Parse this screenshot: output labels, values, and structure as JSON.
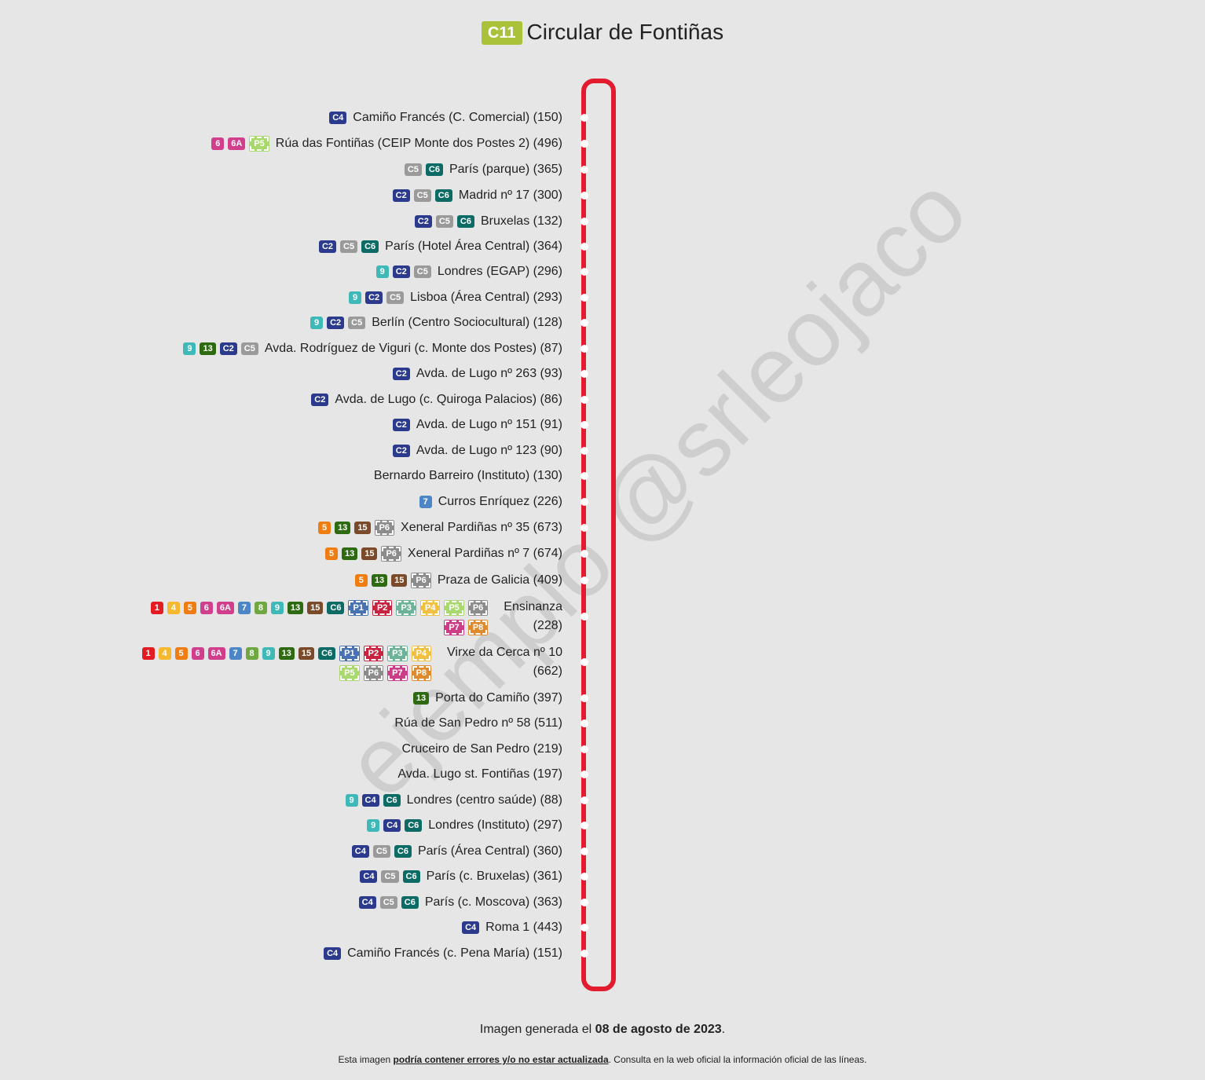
{
  "title": {
    "badge": "C11",
    "text": "Circular de Fontiñas"
  },
  "watermark": "ejemplo @srleojaco",
  "line_colors": {
    "1": "#e31b23",
    "4": "#f5b82e",
    "5": "#f07d12",
    "6": "#d13f8c",
    "6A": "#d13f8c",
    "7": "#4c86c6",
    "8": "#6fa840",
    "9": "#3fb8b8",
    "13": "#2e6a12",
    "15": "#7b4a2b",
    "C2": "#2b3a8c",
    "C4": "#2b3a8c",
    "C5": "#9a9a9a",
    "C6": "#0d6b66",
    "P1": "#4a72b3",
    "P2": "#c9243f",
    "P3": "#6db398",
    "P4": "#f0c043",
    "P5": "#a9d86e",
    "P6": "#8c8c8c",
    "P7": "#cc3d88",
    "P8": "#e08a2e",
    "route": "#e31b2e",
    "title_badge": "#a9c23a"
  },
  "stops": [
    {
      "name": "Camiño Francés (C. Comercial) (150)",
      "lines": [
        "C4"
      ]
    },
    {
      "name": "Rúa das Fontiñas (CEIP Monte dos Postes 2) (496)",
      "lines": [
        "6",
        "6A",
        "P5"
      ]
    },
    {
      "name": "París (parque) (365)",
      "lines": [
        "C5",
        "C6"
      ]
    },
    {
      "name": "Madrid nº 17 (300)",
      "lines": [
        "C2",
        "C5",
        "C6"
      ]
    },
    {
      "name": "Bruxelas (132)",
      "lines": [
        "C2",
        "C5",
        "C6"
      ]
    },
    {
      "name": "París (Hotel Área Central) (364)",
      "lines": [
        "C2",
        "C5",
        "C6"
      ]
    },
    {
      "name": "Londres (EGAP) (296)",
      "lines": [
        "9",
        "C2",
        "C5"
      ]
    },
    {
      "name": "Lisboa (Área Central) (293)",
      "lines": [
        "9",
        "C2",
        "C5"
      ]
    },
    {
      "name": "Berlín (Centro Sociocultural) (128)",
      "lines": [
        "9",
        "C2",
        "C5"
      ]
    },
    {
      "name": "Avda. Rodríguez de Viguri (c. Monte dos Postes) (87)",
      "lines": [
        "9",
        "13",
        "C2",
        "C5"
      ]
    },
    {
      "name": "Avda. de Lugo nº 263 (93)",
      "lines": [
        "C2"
      ]
    },
    {
      "name": "Avda. de Lugo (c. Quiroga Palacios) (86)",
      "lines": [
        "C2"
      ]
    },
    {
      "name": "Avda. de Lugo nº 151 (91)",
      "lines": [
        "C2"
      ]
    },
    {
      "name": "Avda. de Lugo nº 123 (90)",
      "lines": [
        "C2"
      ]
    },
    {
      "name": "Bernardo Barreiro (Instituto) (130)",
      "lines": []
    },
    {
      "name": "Curros Enríquez (226)",
      "lines": [
        "7"
      ]
    },
    {
      "name": "Xeneral Pardiñas nº 35 (673)",
      "lines": [
        "5",
        "13",
        "15",
        "P6"
      ]
    },
    {
      "name": "Xeneral Pardiñas nº 7 (674)",
      "lines": [
        "5",
        "13",
        "15",
        "P6"
      ]
    },
    {
      "name": "Praza de Galicia (409)",
      "lines": [
        "5",
        "13",
        "15",
        "P6"
      ]
    },
    {
      "name_lines": [
        "Ensinanza",
        "(228)"
      ],
      "rows": [
        [
          "1",
          "4",
          "5",
          "6",
          "6A",
          "7",
          "8",
          "9",
          "13",
          "15",
          "C6",
          "P1",
          "P2",
          "P3",
          "P4",
          "P5",
          "P6"
        ],
        [
          "P7",
          "P8"
        ]
      ]
    },
    {
      "name_lines": [
        "Virxe da Cerca nº 10",
        "(662)"
      ],
      "rows": [
        [
          "1",
          "4",
          "5",
          "6",
          "6A",
          "7",
          "8",
          "9",
          "13",
          "15",
          "C6",
          "P1",
          "P2",
          "P3",
          "P4"
        ],
        [
          "P5",
          "P6",
          "P7",
          "P8"
        ]
      ]
    },
    {
      "name": "Porta do Camiño (397)",
      "lines": [
        "13"
      ]
    },
    {
      "name": "Rúa de San Pedro nº 58 (511)",
      "lines": []
    },
    {
      "name": "Cruceiro de San Pedro (219)",
      "lines": []
    },
    {
      "name": "Avda. Lugo st. Fontiñas (197)",
      "lines": []
    },
    {
      "name": "Londres (centro saúde) (88)",
      "lines": [
        "9",
        "C4",
        "C6"
      ]
    },
    {
      "name": "Londres (Instituto) (297)",
      "lines": [
        "9",
        "C4",
        "C6"
      ]
    },
    {
      "name": "París (Área Central) (360)",
      "lines": [
        "C4",
        "C5",
        "C6"
      ]
    },
    {
      "name": "París (c. Bruxelas) (361)",
      "lines": [
        "C4",
        "C5",
        "C6"
      ]
    },
    {
      "name": "París (c. Moscova) (363)",
      "lines": [
        "C4",
        "C5",
        "C6"
      ]
    },
    {
      "name": "Roma 1 (443)",
      "lines": [
        "C4"
      ]
    },
    {
      "name": "Camiño Francés (c. Pena María) (151)",
      "lines": [
        "C4"
      ]
    }
  ],
  "footer": {
    "generated_prefix": "Imagen generada el ",
    "generated_date": "08 de agosto de 2023",
    "generated_suffix": ".",
    "note_prefix": "Esta imagen ",
    "note_bold": "podría contener errores y/o no estar actualizada",
    "note_suffix": ". Consulta en la web oficial la información oficial de las líneas."
  }
}
